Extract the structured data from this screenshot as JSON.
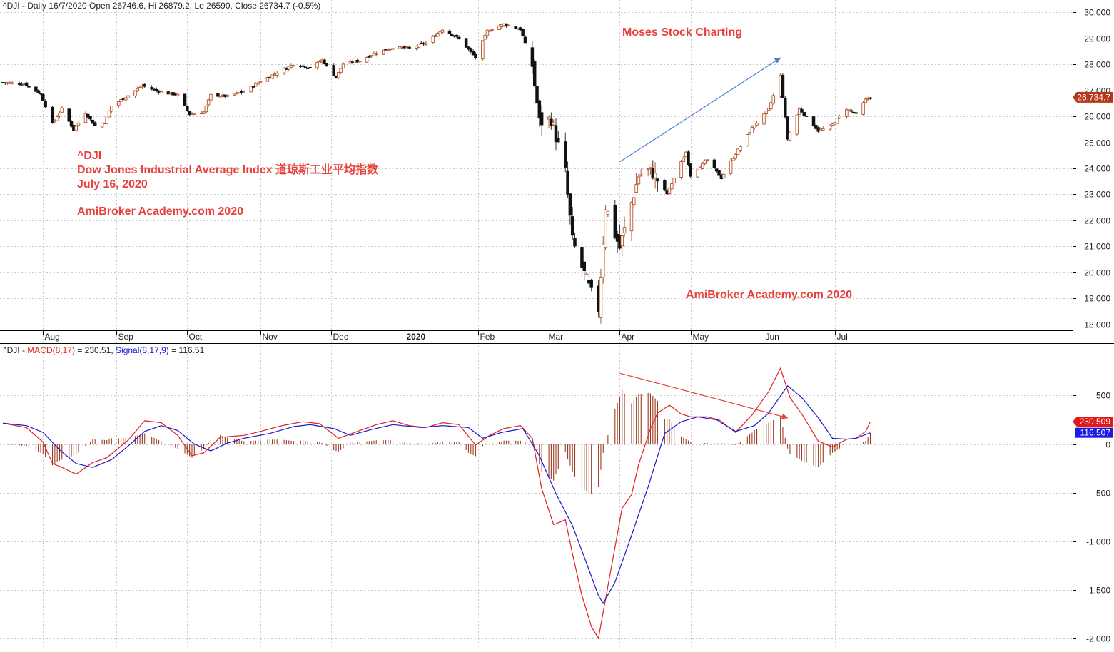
{
  "chart_data": [
    {
      "type": "candlestick",
      "header": "^DJI - Daily 16/7/2020 Open 26746.6, Hi 26879.2, Lo 26590, Close 26734.7 (-0.5%)",
      "ylim": [
        17800,
        30200
      ],
      "y_ticks": [
        18000,
        19000,
        20000,
        21000,
        22000,
        23000,
        24000,
        25000,
        26000,
        27000,
        28000,
        29000,
        30000
      ],
      "y_tick_labels": [
        "18,000",
        "19,000",
        "20,000",
        "21,000",
        "22,000",
        "23,000",
        "24,000",
        "25,000",
        "26,000",
        "27,000",
        "28,000",
        "29,000",
        "30,000"
      ],
      "last_price_label": "26,734.7",
      "last_price": 26734.7,
      "x_start": "2019-07-15",
      "x_end": "2020-07-24",
      "month_labels": [
        {
          "date": "2019-08-01",
          "label": "Aug",
          "bold": false
        },
        {
          "date": "2019-09-01",
          "label": "Sep",
          "bold": false
        },
        {
          "date": "2019-10-01",
          "label": "Oct",
          "bold": false
        },
        {
          "date": "2019-11-01",
          "label": "Nov",
          "bold": false
        },
        {
          "date": "2019-12-01",
          "label": "Dec",
          "bold": false
        },
        {
          "date": "2020-01-01",
          "label": "2020",
          "bold": true
        },
        {
          "date": "2020-02-01",
          "label": "Feb",
          "bold": false
        },
        {
          "date": "2020-03-01",
          "label": "Mar",
          "bold": false
        },
        {
          "date": "2020-04-01",
          "label": "Apr",
          "bold": false
        },
        {
          "date": "2020-05-01",
          "label": "May",
          "bold": false
        },
        {
          "date": "2020-06-01",
          "label": "Jun",
          "bold": false
        },
        {
          "date": "2020-07-01",
          "label": "Jul",
          "bold": false
        }
      ],
      "close_path": [
        [
          "2019-07-15",
          27300
        ],
        [
          "2019-07-24",
          27250
        ],
        [
          "2019-07-31",
          26860
        ],
        [
          "2019-08-05",
          25720
        ],
        [
          "2019-08-09",
          26290
        ],
        [
          "2019-08-14",
          25480
        ],
        [
          "2019-08-19",
          26140
        ],
        [
          "2019-08-23",
          25630
        ],
        [
          "2019-08-27",
          25780
        ],
        [
          "2019-08-30",
          26400
        ],
        [
          "2019-09-06",
          26800
        ],
        [
          "2019-09-12",
          27180
        ],
        [
          "2019-09-20",
          26930
        ],
        [
          "2019-09-27",
          26820
        ],
        [
          "2019-10-02",
          26080
        ],
        [
          "2019-10-08",
          26170
        ],
        [
          "2019-10-11",
          26820
        ],
        [
          "2019-10-18",
          26770
        ],
        [
          "2019-10-25",
          26960
        ],
        [
          "2019-11-01",
          27350
        ],
        [
          "2019-11-08",
          27680
        ],
        [
          "2019-11-15",
          28000
        ],
        [
          "2019-11-22",
          27870
        ],
        [
          "2019-11-27",
          28160
        ],
        [
          "2019-12-03",
          27500
        ],
        [
          "2019-12-06",
          28015
        ],
        [
          "2019-12-13",
          28135
        ],
        [
          "2019-12-20",
          28455
        ],
        [
          "2019-12-27",
          28650
        ],
        [
          "2020-01-03",
          28630
        ],
        [
          "2020-01-10",
          28820
        ],
        [
          "2020-01-17",
          29350
        ],
        [
          "2020-01-24",
          28990
        ],
        [
          "2020-01-31",
          28260
        ],
        [
          "2020-02-05",
          29290
        ],
        [
          "2020-02-12",
          29550
        ],
        [
          "2020-02-19",
          29350
        ],
        [
          "2020-02-24",
          27960
        ],
        [
          "2020-02-27",
          25770
        ],
        [
          "2020-03-03",
          25900
        ],
        [
          "2020-03-09",
          23850
        ],
        [
          "2020-03-12",
          21200
        ],
        [
          "2020-03-16",
          20190
        ],
        [
          "2020-03-20",
          19170
        ],
        [
          "2020-03-23",
          18590
        ],
        [
          "2020-03-26",
          22550
        ],
        [
          "2020-04-01",
          20940
        ],
        [
          "2020-04-06",
          22680
        ],
        [
          "2020-04-09",
          23720
        ],
        [
          "2020-04-14",
          23950
        ],
        [
          "2020-04-21",
          23020
        ],
        [
          "2020-04-29",
          24630
        ],
        [
          "2020-05-01",
          23720
        ],
        [
          "2020-05-08",
          24330
        ],
        [
          "2020-05-14",
          23630
        ],
        [
          "2020-05-20",
          24570
        ],
        [
          "2020-05-27",
          25550
        ],
        [
          "2020-06-03",
          26270
        ],
        [
          "2020-06-08",
          27570
        ],
        [
          "2020-06-11",
          25130
        ],
        [
          "2020-06-16",
          26290
        ],
        [
          "2020-06-24",
          25450
        ],
        [
          "2020-06-29",
          25600
        ],
        [
          "2020-07-06",
          26290
        ],
        [
          "2020-07-10",
          26080
        ],
        [
          "2020-07-14",
          26640
        ],
        [
          "2020-07-16",
          26734.7
        ]
      ],
      "annotations": [
        {
          "text": "Moses Stock Charting",
          "color": "#e8403a"
        },
        {
          "text": "^DJI",
          "color": "#e8403a"
        },
        {
          "text": "Dow Jones Industrial Average Index 道琼斯工业平均指数",
          "color": "#e8403a"
        },
        {
          "text": "July 16, 2020",
          "color": "#e8403a"
        },
        {
          "text": "AmiBroker Academy.com  2020",
          "color": "#e8403a"
        },
        {
          "text": "AmiBroker Academy.com  2020",
          "color": "#e8403a"
        }
      ],
      "trend_arrow": {
        "from": [
          "2020-04-01",
          24250
        ],
        "to": [
          "2020-06-08",
          28250
        ],
        "color": "#4a7fd4"
      },
      "colors": {
        "up_body": "#ffffff",
        "up_outline": "#b5532a",
        "down_body": "#111111",
        "wick": "#333333",
        "grid": "#c8c8c8",
        "last_price_tag": "#b5381a"
      }
    },
    {
      "type": "line",
      "header_prefix": "^DJI - ",
      "macd_label": "MACD(8,17)",
      "macd_value_text": " = 230.51, ",
      "signal_label": "Signal(8,17,9)",
      "signal_value_text": " = 116.51",
      "ylim": [
        -2060,
        900
      ],
      "y_ticks": [
        -2000,
        -1500,
        -1000,
        -500,
        0,
        500
      ],
      "y_tick_labels": [
        "-2,000",
        "-1,500",
        "-1,000",
        "-500",
        "0",
        "500"
      ],
      "macd_tag": "230.509",
      "signal_tag": "116.507",
      "macd_last": 230.509,
      "signal_last": 116.507,
      "macd_path": [
        [
          "2019-07-15",
          215
        ],
        [
          "2019-07-25",
          170
        ],
        [
          "2019-08-01",
          20
        ],
        [
          "2019-08-05",
          -200
        ],
        [
          "2019-08-09",
          -240
        ],
        [
          "2019-08-15",
          -310
        ],
        [
          "2019-08-22",
          -190
        ],
        [
          "2019-08-28",
          -140
        ],
        [
          "2019-09-06",
          40
        ],
        [
          "2019-09-13",
          240
        ],
        [
          "2019-09-20",
          220
        ],
        [
          "2019-09-27",
          90
        ],
        [
          "2019-10-03",
          -120
        ],
        [
          "2019-10-08",
          -90
        ],
        [
          "2019-10-15",
          70
        ],
        [
          "2019-10-25",
          90
        ],
        [
          "2019-11-01",
          130
        ],
        [
          "2019-11-10",
          190
        ],
        [
          "2019-11-19",
          230
        ],
        [
          "2019-11-26",
          210
        ],
        [
          "2019-12-04",
          60
        ],
        [
          "2019-12-12",
          130
        ],
        [
          "2019-12-20",
          200
        ],
        [
          "2019-12-27",
          240
        ],
        [
          "2020-01-03",
          190
        ],
        [
          "2020-01-10",
          170
        ],
        [
          "2020-01-17",
          220
        ],
        [
          "2020-01-24",
          200
        ],
        [
          "2020-01-31",
          -10
        ],
        [
          "2020-02-06",
          90
        ],
        [
          "2020-02-12",
          160
        ],
        [
          "2020-02-19",
          190
        ],
        [
          "2020-02-24",
          60
        ],
        [
          "2020-02-28",
          -460
        ],
        [
          "2020-03-04",
          -830
        ],
        [
          "2020-03-09",
          -780
        ],
        [
          "2020-03-12",
          -1130
        ],
        [
          "2020-03-16",
          -1560
        ],
        [
          "2020-03-20",
          -1880
        ],
        [
          "2020-03-23",
          -2000
        ],
        [
          "2020-03-27",
          -1460
        ],
        [
          "2020-04-02",
          -660
        ],
        [
          "2020-04-06",
          -520
        ],
        [
          "2020-04-09",
          -210
        ],
        [
          "2020-04-14",
          160
        ],
        [
          "2020-04-17",
          320
        ],
        [
          "2020-04-22",
          400
        ],
        [
          "2020-04-27",
          310
        ],
        [
          "2020-05-01",
          280
        ],
        [
          "2020-05-08",
          280
        ],
        [
          "2020-05-13",
          250
        ],
        [
          "2020-05-20",
          120
        ],
        [
          "2020-05-27",
          300
        ],
        [
          "2020-06-03",
          540
        ],
        [
          "2020-06-08",
          780
        ],
        [
          "2020-06-12",
          480
        ],
        [
          "2020-06-17",
          310
        ],
        [
          "2020-06-24",
          30
        ],
        [
          "2020-06-30",
          -30
        ],
        [
          "2020-07-06",
          50
        ],
        [
          "2020-07-10",
          60
        ],
        [
          "2020-07-14",
          130
        ],
        [
          "2020-07-16",
          230.5
        ]
      ],
      "signal_path": [
        [
          "2019-07-15",
          215
        ],
        [
          "2019-07-25",
          190
        ],
        [
          "2019-08-01",
          120
        ],
        [
          "2019-08-08",
          -60
        ],
        [
          "2019-08-15",
          -200
        ],
        [
          "2019-08-22",
          -240
        ],
        [
          "2019-08-30",
          -160
        ],
        [
          "2019-09-06",
          -20
        ],
        [
          "2019-09-13",
          130
        ],
        [
          "2019-09-20",
          190
        ],
        [
          "2019-09-27",
          140
        ],
        [
          "2019-10-04",
          0
        ],
        [
          "2019-10-11",
          -70
        ],
        [
          "2019-10-18",
          10
        ],
        [
          "2019-10-25",
          60
        ],
        [
          "2019-11-05",
          110
        ],
        [
          "2019-11-15",
          180
        ],
        [
          "2019-11-22",
          200
        ],
        [
          "2019-12-02",
          160
        ],
        [
          "2019-12-09",
          90
        ],
        [
          "2019-12-18",
          150
        ],
        [
          "2019-12-27",
          200
        ],
        [
          "2020-01-08",
          170
        ],
        [
          "2020-01-17",
          190
        ],
        [
          "2020-01-28",
          170
        ],
        [
          "2020-02-03",
          60
        ],
        [
          "2020-02-11",
          120
        ],
        [
          "2020-02-20",
          160
        ],
        [
          "2020-02-27",
          -120
        ],
        [
          "2020-03-05",
          -510
        ],
        [
          "2020-03-12",
          -840
        ],
        [
          "2020-03-18",
          -1230
        ],
        [
          "2020-03-23",
          -1560
        ],
        [
          "2020-03-25",
          -1640
        ],
        [
          "2020-03-30",
          -1420
        ],
        [
          "2020-04-06",
          -940
        ],
        [
          "2020-04-13",
          -440
        ],
        [
          "2020-04-20",
          110
        ],
        [
          "2020-04-27",
          230
        ],
        [
          "2020-05-04",
          280
        ],
        [
          "2020-05-12",
          250
        ],
        [
          "2020-05-20",
          130
        ],
        [
          "2020-05-28",
          190
        ],
        [
          "2020-06-03",
          320
        ],
        [
          "2020-06-11",
          600
        ],
        [
          "2020-06-17",
          480
        ],
        [
          "2020-06-24",
          270
        ],
        [
          "2020-06-30",
          60
        ],
        [
          "2020-07-06",
          50
        ],
        [
          "2020-07-10",
          60
        ],
        [
          "2020-07-16",
          116.5
        ]
      ],
      "trend_arrow": {
        "from": [
          "2020-04-01",
          730
        ],
        "to": [
          "2020-06-11",
          270
        ],
        "color": "#e8403a"
      },
      "colors": {
        "macd": "#e02020",
        "signal": "#1a1acc",
        "histogram": "#9b3a1e",
        "grid": "#c8c8c8"
      }
    }
  ]
}
